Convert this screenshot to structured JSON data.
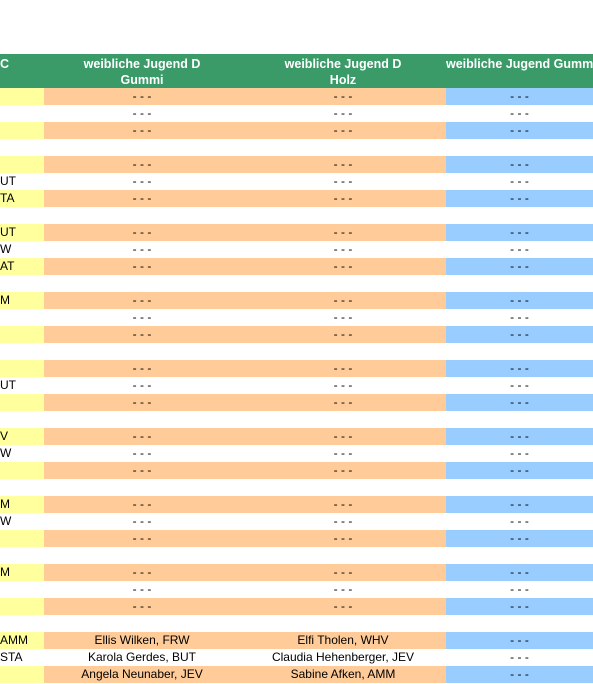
{
  "colors": {
    "header": "#3a9a68",
    "yellow": "#ffff9e",
    "orange": "#ffcc99",
    "blue": "#99ccff",
    "white": "#ffffff",
    "offwhite": "#fbfbf5"
  },
  "header": {
    "col0": "C",
    "col1": "weibliche Jugend D\nGummi",
    "col2": "weibliche Jugend D\nHolz",
    "col3": "weibliche Jugend\nGummi"
  },
  "groups": [
    [
      {
        "c0": "",
        "c1": "- - -",
        "c2": "- - -",
        "c3": "- - -"
      },
      {
        "c0": "",
        "c1": "- - -",
        "c2": "- - -",
        "c3": "- - -"
      },
      {
        "c0": "",
        "c1": "- - -",
        "c2": "- - -",
        "c3": "- - -"
      }
    ],
    [
      {
        "c0": "",
        "c1": "- - -",
        "c2": "- - -",
        "c3": "- - -"
      },
      {
        "c0": "UT",
        "c1": "- - -",
        "c2": "- - -",
        "c3": "- - -"
      },
      {
        "c0": "TA",
        "c1": "- - -",
        "c2": "- - -",
        "c3": "- - -"
      }
    ],
    [
      {
        "c0": "UT",
        "c1": "- - -",
        "c2": "- - -",
        "c3": "- - -"
      },
      {
        "c0": "W",
        "c1": "- - -",
        "c2": "- - -",
        "c3": "- - -"
      },
      {
        "c0": "AT",
        "c1": "- - -",
        "c2": "- - -",
        "c3": "- - -"
      }
    ],
    [
      {
        "c0": "M",
        "c1": "- - -",
        "c2": "- - -",
        "c3": "- - -"
      },
      {
        "c0": "",
        "c1": "- - -",
        "c2": "- - -",
        "c3": "- - -"
      },
      {
        "c0": "",
        "c1": "- - -",
        "c2": "- - -",
        "c3": "- - -"
      }
    ],
    [
      {
        "c0": "",
        "c1": "- - -",
        "c2": "- - -",
        "c3": "- - -"
      },
      {
        "c0": "UT",
        "c1": "- - -",
        "c2": "- - -",
        "c3": "- - -"
      },
      {
        "c0": "",
        "c1": "- - -",
        "c2": "- - -",
        "c3": "- - -"
      }
    ],
    [
      {
        "c0": "V",
        "c1": "- - -",
        "c2": "- - -",
        "c3": "- - -"
      },
      {
        "c0": "W",
        "c1": "- - -",
        "c2": "- - -",
        "c3": "- - -"
      },
      {
        "c0": "",
        "c1": "- - -",
        "c2": "- - -",
        "c3": "- - -"
      }
    ],
    [
      {
        "c0": "M",
        "c1": "- - -",
        "c2": "- - -",
        "c3": "- - -"
      },
      {
        "c0": "W",
        "c1": "- - -",
        "c2": "- - -",
        "c3": "- - -"
      },
      {
        "c0": "",
        "c1": "- - -",
        "c2": "- - -",
        "c3": "- - -"
      }
    ],
    [
      {
        "c0": "M",
        "c1": "- - -",
        "c2": "- - -",
        "c3": "- - -"
      },
      {
        "c0": "",
        "c1": "- - -",
        "c2": "- - -",
        "c3": "- - -"
      },
      {
        "c0": "",
        "c1": "- - -",
        "c2": "- - -",
        "c3": "- - -"
      }
    ],
    [
      {
        "c0": "AMM",
        "c1": "Ellis Wilken, FRW",
        "c2": "Elfi Tholen, WHV",
        "c3": "- - -"
      },
      {
        "c0": "STA",
        "c1": "Karola Gerdes, BUT",
        "c2": "Claudia Hehenberger, JEV",
        "c3": "- - -"
      },
      {
        "c0": "",
        "c1": "Angela Neunaber, JEV",
        "c2": "Sabine Afken, AMM",
        "c3": "- - -"
      }
    ]
  ]
}
